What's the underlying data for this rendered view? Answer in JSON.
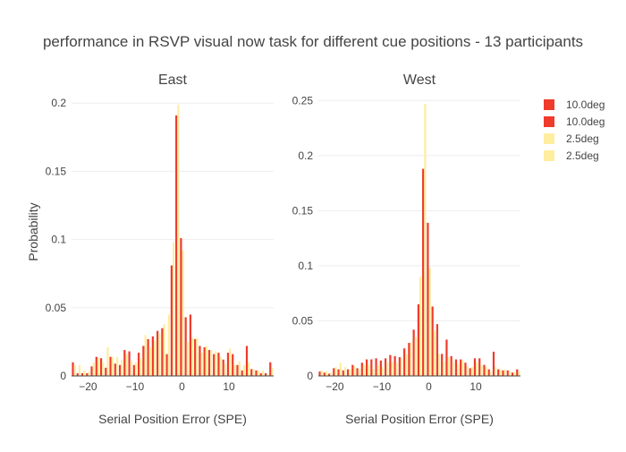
{
  "chart_data": {
    "type": "bar",
    "title": "performance in RSVP visual now task for different cue positions - 13 participants",
    "ylabel": "Probability",
    "xlabel": "Serial Position Error (SPE)",
    "legend": [
      {
        "name": "10.0deg",
        "color": "#ef3b2c"
      },
      {
        "name": "10.0deg",
        "color": "#ef3b2c"
      },
      {
        "name": "2.5deg",
        "color": "#ffeda0"
      },
      {
        "name": "2.5deg",
        "color": "#ffeda0"
      }
    ],
    "legend_position": "top-right",
    "x": [
      -23,
      -22,
      -21,
      -20,
      -19,
      -18,
      -17,
      -16,
      -15,
      -14,
      -13,
      -12,
      -11,
      -10,
      -9,
      -8,
      -7,
      -6,
      -5,
      -4,
      -3,
      -2,
      -1,
      0,
      1,
      2,
      3,
      4,
      5,
      6,
      7,
      8,
      9,
      10,
      11,
      12,
      13,
      14,
      15,
      16,
      17,
      18,
      19
    ],
    "panels": [
      {
        "title": "East",
        "xlim": [
          -23.5,
          19.5
        ],
        "ylim": [
          0,
          0.21
        ],
        "y_ticks": [
          0,
          0.05,
          0.1,
          0.15,
          0.2
        ],
        "y_tick_labels": [
          "0",
          "0.05",
          "0.1",
          "0.15",
          "0.2"
        ],
        "x_ticks": [
          -20,
          -10,
          0,
          10
        ],
        "x_tick_labels": [
          "−20",
          "−10",
          "0",
          "10"
        ],
        "series": [
          {
            "name": "10.0deg",
            "color": "#ef3b2c",
            "values": [
              0.01,
              0.002,
              0.002,
              0.002,
              0.007,
              0.014,
              0.013,
              0.006,
              0.014,
              0.009,
              0.008,
              0.019,
              0.018,
              0.008,
              0.017,
              0.022,
              0.027,
              0.029,
              0.033,
              0.035,
              0.016,
              0.081,
              0.191,
              0.101,
              0.043,
              0.045,
              0.027,
              0.022,
              0.021,
              0.019,
              0.016,
              0.017,
              0.012,
              0.017,
              0.016,
              0.008,
              0.004,
              0.022,
              0.005,
              0.004,
              0.002,
              0.002,
              0.01
            ]
          },
          {
            "name": "2.5deg",
            "color": "#ffeda0",
            "values": [
              0.008,
              0.008,
              0.004,
              0.003,
              0.01,
              0.013,
              0.01,
              0.021,
              0.014,
              0.014,
              0.012,
              0.016,
              0.011,
              0.01,
              0.013,
              0.03,
              0.021,
              0.026,
              0.031,
              0.038,
              0.045,
              0.098,
              0.199,
              0.092,
              0.025,
              0.028,
              0.028,
              0.017,
              0.022,
              0.019,
              0.018,
              0.014,
              0.009,
              0.02,
              0.008,
              0.011,
              0.008,
              0.01,
              0.005,
              0.004,
              0.004,
              0.002,
              0.006
            ]
          }
        ]
      },
      {
        "title": "West",
        "xlim": [
          -23.5,
          19.5
        ],
        "ylim": [
          0,
          0.26
        ],
        "y_ticks": [
          0,
          0.05,
          0.1,
          0.15,
          0.2,
          0.25
        ],
        "y_tick_labels": [
          "0",
          "0.05",
          "0.1",
          "0.15",
          "0.2",
          "0.25"
        ],
        "x_ticks": [
          -20,
          -10,
          0,
          10
        ],
        "x_tick_labels": [
          "−20",
          "−10",
          "0",
          "10"
        ],
        "series": [
          {
            "name": "10.0deg",
            "color": "#ef3b2c",
            "values": [
              0.004,
              0.003,
              0.002,
              0.007,
              0.006,
              0.005,
              0.006,
              0.01,
              0.007,
              0.012,
              0.015,
              0.015,
              0.016,
              0.014,
              0.016,
              0.019,
              0.018,
              0.017,
              0.025,
              0.03,
              0.042,
              0.065,
              0.188,
              0.139,
              0.063,
              0.047,
              0.02,
              0.033,
              0.018,
              0.015,
              0.015,
              0.012,
              0.007,
              0.016,
              0.016,
              0.01,
              0.006,
              0.022,
              0.006,
              0.005,
              0.005,
              0.003,
              0.006
            ]
          },
          {
            "name": "2.5deg",
            "color": "#ffeda0",
            "values": [
              0.005,
              0.004,
              0.003,
              0.008,
              0.012,
              0.008,
              0.006,
              0.009,
              0.006,
              0.01,
              0.01,
              0.006,
              0.01,
              0.008,
              0.012,
              0.013,
              0.012,
              0.016,
              0.02,
              0.03,
              0.035,
              0.09,
              0.247,
              0.098,
              0.041,
              0.02,
              0.013,
              0.017,
              0.013,
              0.011,
              0.014,
              0.009,
              0.008,
              0.012,
              0.01,
              0.008,
              0.004,
              0.008,
              0.006,
              0.006,
              0.004,
              0.003,
              0.004
            ]
          }
        ]
      }
    ]
  }
}
